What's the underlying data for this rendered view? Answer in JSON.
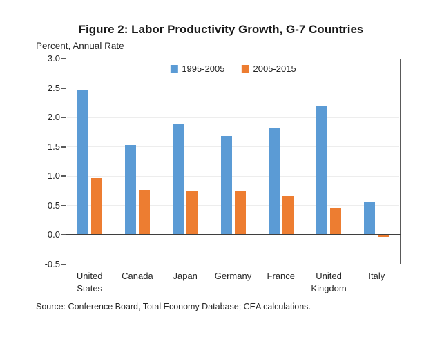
{
  "figure": {
    "title": "Figure 2: Labor Productivity Growth, G-7 Countries",
    "subtitle": "Percent, Annual Rate",
    "source": "Source: Conference Board, Total Economy Database; CEA calculations."
  },
  "chart_data": {
    "type": "bar",
    "title": "Figure 2: Labor Productivity Growth, G-7 Countries",
    "ylabel": "Percent, Annual Rate",
    "categories": [
      "United States",
      "Canada",
      "Japan",
      "Germany",
      "France",
      "United Kingdom",
      "Italy"
    ],
    "series": [
      {
        "name": "1995-2005",
        "color": "#5B9BD5",
        "values": [
          2.47,
          1.53,
          1.89,
          1.69,
          1.83,
          2.19,
          0.57
        ]
      },
      {
        "name": "2005-2015",
        "color": "#ED7D31",
        "values": [
          0.97,
          0.77,
          0.76,
          0.76,
          0.66,
          0.46,
          -0.03
        ]
      }
    ],
    "ylim": [
      -0.5,
      3.0
    ],
    "yticks": [
      "3.0",
      "2.5",
      "2.0",
      "1.5",
      "1.0",
      "0.5",
      "0.0",
      "-0.5"
    ],
    "grid": true,
    "legend_position": "top-center",
    "source": "Source: Conference Board, Total Economy Database; CEA calculations."
  }
}
